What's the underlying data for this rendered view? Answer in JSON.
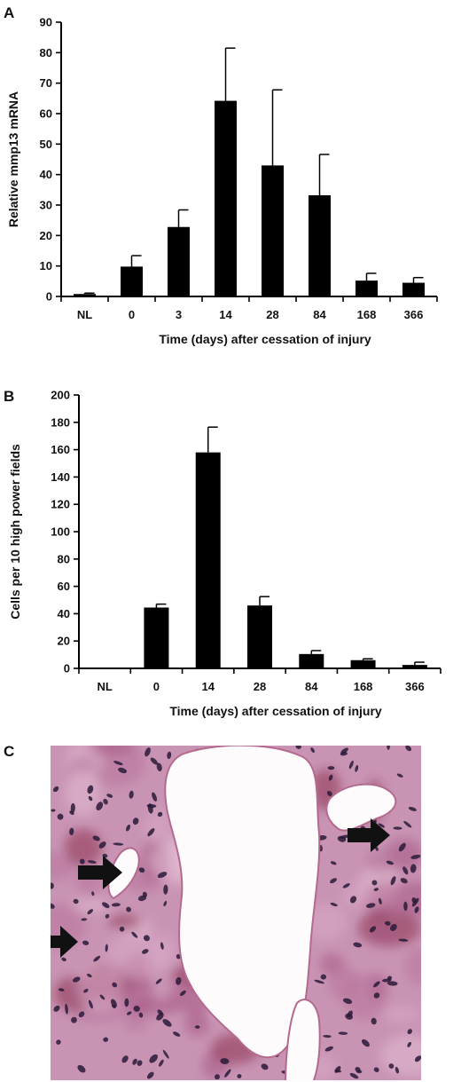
{
  "chart_data": [
    {
      "panel": "A",
      "type": "bar",
      "categories": [
        "NL",
        "0",
        "3",
        "14",
        "28",
        "84",
        "168",
        "366"
      ],
      "series": [
        {
          "values": [
            0.8,
            9.8,
            22.8,
            64.2,
            43.0,
            33.2,
            5.2,
            4.5
          ],
          "error": [
            0.3,
            3.6,
            5.6,
            17.3,
            24.8,
            13.4,
            2.4,
            1.7
          ]
        }
      ],
      "xlabel": "Time (days) after cessation of injury",
      "ylabel": "Relative mmp13 mRNA",
      "ylim": [
        0,
        90
      ],
      "yticks": [
        0,
        10,
        20,
        30,
        40,
        50,
        60,
        70,
        80,
        90
      ],
      "grid": false,
      "legend": "none",
      "bar_color": "#000000"
    },
    {
      "panel": "B",
      "type": "bar",
      "categories": [
        "NL",
        "0",
        "14",
        "28",
        "84",
        "168",
        "366"
      ],
      "series": [
        {
          "values": [
            0,
            44.5,
            158,
            46,
            10.5,
            6,
            2.5
          ],
          "error": [
            0,
            2.5,
            18.5,
            6.5,
            2.5,
            1,
            2
          ]
        }
      ],
      "xlabel": "Time (days) after cessation of injury",
      "ylabel": "Cells per 10 high power fields",
      "ylim": [
        0,
        200
      ],
      "yticks": [
        0,
        20,
        40,
        60,
        80,
        100,
        120,
        140,
        160,
        180,
        200
      ],
      "grid": false,
      "legend": "none",
      "bar_color": "#000000"
    }
  ],
  "panel_labels": {
    "a": "A",
    "b": "B",
    "c": "C"
  },
  "micrograph": {
    "stain_colors": {
      "background": "#c994b4",
      "nuclei": "#2a1a3a",
      "lumen": "#fdfbfc",
      "cytoplasm": "#8a2d4a"
    }
  }
}
